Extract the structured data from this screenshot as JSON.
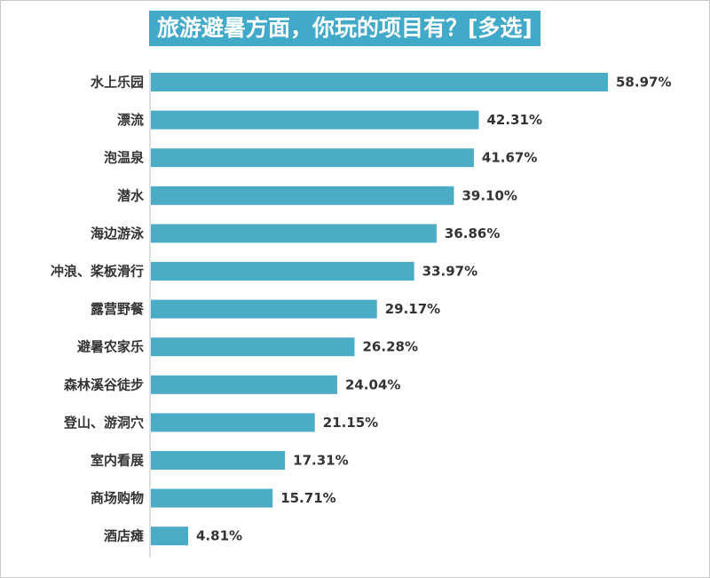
{
  "chart_data": {
    "type": "bar",
    "orientation": "horizontal",
    "title": "旅游避暑方面，你玩的项目有？[多选]",
    "categories": [
      "水上乐园",
      "漂流",
      "泡温泉",
      "潜水",
      "海边游泳",
      "冲浪、桨板滑行",
      "露营野餐",
      "避暑农家乐",
      "森林溪谷徒步",
      "登山、游洞穴",
      "室内看展",
      "商场购物",
      "酒店瘫"
    ],
    "values": [
      58.97,
      42.31,
      41.67,
      39.1,
      36.86,
      33.97,
      29.17,
      26.28,
      24.04,
      21.15,
      17.31,
      15.71,
      4.81
    ],
    "value_labels": [
      "58.97%",
      "42.31%",
      "41.67%",
      "39.10%",
      "36.86%",
      "33.97%",
      "29.17%",
      "26.28%",
      "24.04%",
      "21.15%",
      "17.31%",
      "15.71%",
      "4.81%"
    ],
    "xlim": [
      0,
      70
    ],
    "grid": false,
    "bar_color": "#4bacc6",
    "title_bg_color": "#40aac8"
  }
}
